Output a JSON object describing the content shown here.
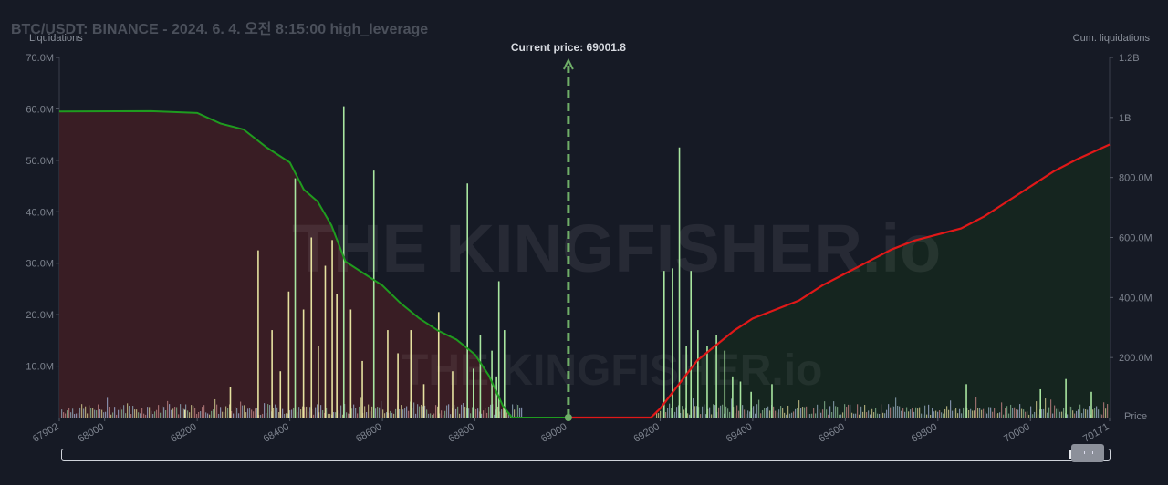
{
  "header": {
    "title": "BTC/USDT: BINANCE - 2024. 6. 4. 오전 8:15:00 high_leverage",
    "left_axis_title": "Liquidations",
    "right_axis_title": "Cum. liquidations",
    "price_axis_label": "Price",
    "current_price_label": "Current price: 69001.8",
    "watermark": "THE KINGFISHER.io"
  },
  "colors": {
    "background": "#161a25",
    "short_cum_line": "#1f9b1f",
    "long_cum_line": "#e01818",
    "short_area": "#3b1e24",
    "long_area": "#15261f",
    "current_price_line": "#6fae68",
    "bar_green": "#a8e6a0",
    "bar_yellow": "#e6e2a0",
    "bar_small": "#8ba3b3"
  },
  "chart_data": {
    "type": "bar",
    "x_range": [
      67902,
      70171
    ],
    "x_ticks": [
      "67902",
      "68000",
      "68200",
      "68400",
      "68600",
      "68800",
      "69000",
      "69200",
      "69400",
      "69600",
      "69800",
      "70000",
      "70171"
    ],
    "y_left_ticks": [
      "70.0M",
      "60.0M",
      "50.0M",
      "40.0M",
      "30.0M",
      "20.0M",
      "10.0M"
    ],
    "y_left_range": [
      0,
      70000000
    ],
    "y_right_ticks": [
      "1.2B",
      "1B",
      "800.0M",
      "600.0M",
      "400.0M",
      "200.0M"
    ],
    "y_right_range": [
      0,
      1200000000
    ],
    "current_price": 69001.8,
    "major_bars": [
      [
        68172,
        1.5
      ],
      [
        68270,
        6
      ],
      [
        68330,
        32.5
      ],
      [
        68360,
        17
      ],
      [
        68378,
        9
      ],
      [
        68396,
        24.5
      ],
      [
        68410,
        46.5
      ],
      [
        68428,
        21
      ],
      [
        68445,
        35
      ],
      [
        68460,
        14
      ],
      [
        68475,
        29.5
      ],
      [
        68490,
        34.5
      ],
      [
        68500,
        24
      ],
      [
        68515,
        60.5
      ],
      [
        68530,
        21
      ],
      [
        68555,
        11
      ],
      [
        68580,
        48
      ],
      [
        68610,
        17
      ],
      [
        68632,
        12.5
      ],
      [
        68660,
        17
      ],
      [
        68688,
        6.5
      ],
      [
        68720,
        20.5
      ],
      [
        68750,
        9
      ],
      [
        68782,
        45.5
      ],
      [
        68795,
        9.5
      ],
      [
        68810,
        16
      ],
      [
        68835,
        13
      ],
      [
        68845,
        8
      ],
      [
        68850,
        26.5
      ],
      [
        68862,
        17
      ],
      [
        69207,
        28.5
      ],
      [
        69225,
        29
      ],
      [
        69240,
        52.5
      ],
      [
        69255,
        14
      ],
      [
        69265,
        28.5
      ],
      [
        69280,
        17
      ],
      [
        69300,
        14
      ],
      [
        69320,
        16
      ],
      [
        69338,
        13
      ],
      [
        69355,
        8
      ],
      [
        69372,
        7
      ],
      [
        69395,
        5
      ],
      [
        69440,
        6.5
      ],
      [
        69860,
        6.5
      ],
      [
        70020,
        5.5
      ],
      [
        70075,
        7.5
      ],
      [
        70130,
        5
      ]
    ],
    "short_cumulative": [
      [
        67902,
        1020
      ],
      [
        68100,
        1021
      ],
      [
        68200,
        1015
      ],
      [
        68250,
        980
      ],
      [
        68300,
        960
      ],
      [
        68350,
        900
      ],
      [
        68400,
        850
      ],
      [
        68430,
        760
      ],
      [
        68460,
        720
      ],
      [
        68490,
        640
      ],
      [
        68520,
        520
      ],
      [
        68560,
        480
      ],
      [
        68600,
        440
      ],
      [
        68640,
        380
      ],
      [
        68680,
        330
      ],
      [
        68720,
        290
      ],
      [
        68760,
        260
      ],
      [
        68800,
        210
      ],
      [
        68830,
        140
      ],
      [
        68860,
        40
      ],
      [
        68880,
        0
      ],
      [
        69000,
        0
      ]
    ],
    "long_cumulative": [
      [
        69000,
        0
      ],
      [
        69180,
        0
      ],
      [
        69200,
        30
      ],
      [
        69240,
        110
      ],
      [
        69280,
        190
      ],
      [
        69320,
        240
      ],
      [
        69360,
        290
      ],
      [
        69400,
        330
      ],
      [
        69450,
        360
      ],
      [
        69500,
        390
      ],
      [
        69550,
        440
      ],
      [
        69600,
        480
      ],
      [
        69650,
        520
      ],
      [
        69700,
        560
      ],
      [
        69750,
        590
      ],
      [
        69800,
        610
      ],
      [
        69850,
        630
      ],
      [
        69900,
        670
      ],
      [
        69950,
        720
      ],
      [
        70000,
        770
      ],
      [
        70050,
        820
      ],
      [
        70100,
        860
      ],
      [
        70171,
        910
      ]
    ],
    "xlabel": "Price",
    "ylabel": "Liquidations",
    "ylabel_right": "Cum. liquidations",
    "grid": false
  }
}
